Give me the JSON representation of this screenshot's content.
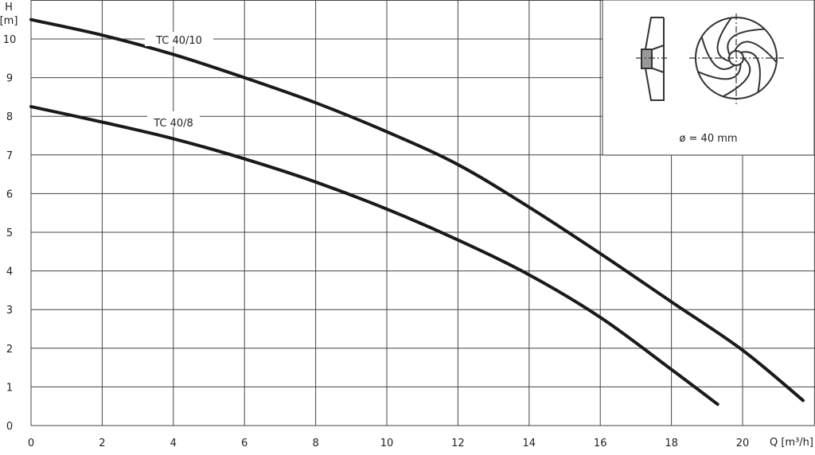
{
  "chart_data": {
    "type": "line",
    "title": "",
    "xlabel": "Q [m³/h]",
    "ylabel_top": "H",
    "ylabel_unit": "[m]",
    "xlim": [
      0,
      22
    ],
    "ylim": [
      0,
      11
    ],
    "x_ticks": [
      0,
      2,
      4,
      6,
      8,
      10,
      12,
      14,
      16,
      18,
      20
    ],
    "y_ticks": [
      0,
      1,
      2,
      3,
      4,
      5,
      6,
      7,
      8,
      9,
      10
    ],
    "grid": true,
    "line_color": "#1a1a1a",
    "series": [
      {
        "name": "TC 40/10",
        "x": [
          0,
          2,
          4,
          6,
          8,
          10,
          12,
          14,
          16,
          18,
          20,
          21.7
        ],
        "y": [
          10.5,
          10.1,
          9.6,
          9.0,
          8.35,
          7.6,
          6.75,
          5.65,
          4.45,
          3.2,
          1.95,
          0.65
        ]
      },
      {
        "name": "TC 40/8",
        "x": [
          0,
          2,
          4,
          6,
          8,
          10,
          12,
          14,
          16,
          18,
          19.3
        ],
        "y": [
          8.25,
          7.85,
          7.42,
          6.9,
          6.3,
          5.6,
          4.8,
          3.9,
          2.8,
          1.45,
          0.55
        ]
      }
    ],
    "inset": {
      "caption": "ø = 40 mm",
      "icon": "impeller-drawing"
    }
  }
}
